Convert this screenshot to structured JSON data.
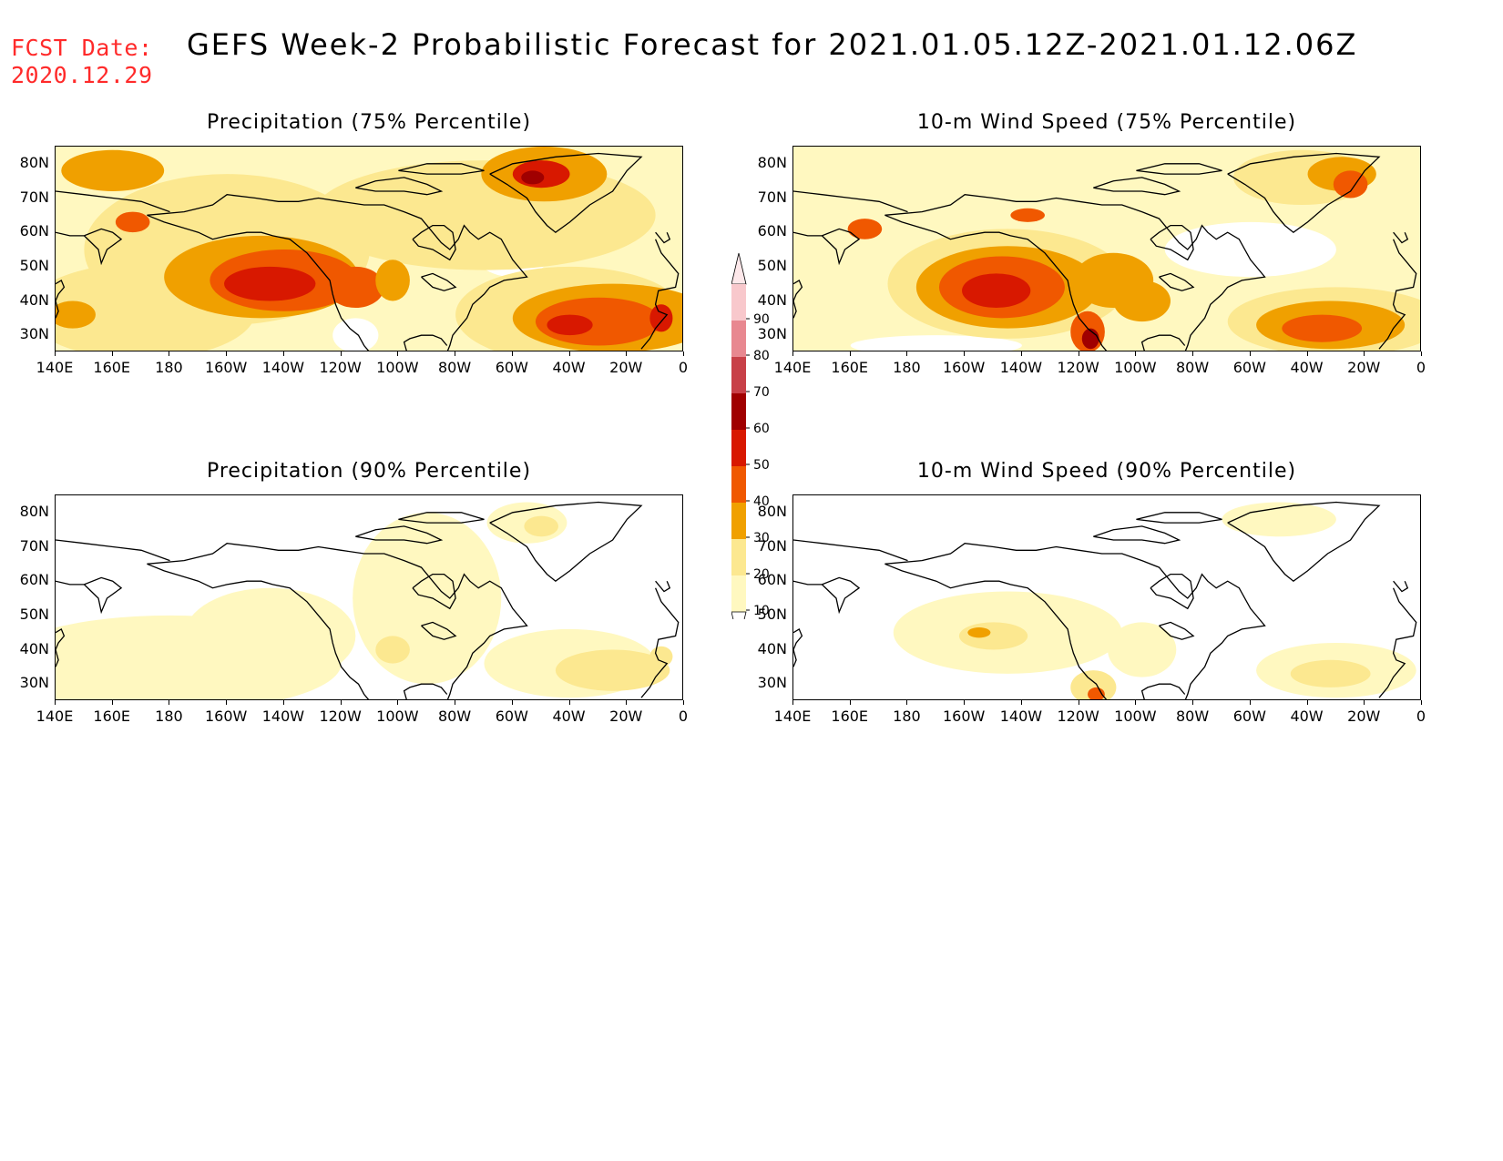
{
  "header": {
    "fcst_label": "FCST Date:",
    "fcst_date": "2020.12.29",
    "title": "GEFS Week-2 Probabilistic Forecast for 2021.01.05.12Z-2021.01.12.06Z"
  },
  "axes": {
    "lat_labels": [
      "80N",
      "70N",
      "60N",
      "50N",
      "40N",
      "30N"
    ],
    "lon_labels": [
      "140E",
      "160E",
      "180",
      "160W",
      "140W",
      "120W",
      "100W",
      "80W",
      "60W",
      "40W",
      "20W",
      "0"
    ]
  },
  "panels": [
    {
      "id": "precip-75",
      "title": "Precipitation (75% Percentile)"
    },
    {
      "id": "wind-75",
      "title": "10-m Wind Speed (75% Percentile)"
    },
    {
      "id": "precip-90",
      "title": "Precipitation (90% Percentile)"
    },
    {
      "id": "wind-90",
      "title": "10-m Wind Speed (90% Percentile)"
    }
  ],
  "colorbar": {
    "levels": [
      "90",
      "80",
      "70",
      "60",
      "50",
      "40",
      "30",
      "20",
      "10"
    ],
    "colors": [
      "#f8c8cc",
      "#e88890",
      "#c84048",
      "#a00000",
      "#d81800",
      "#f05800",
      "#f0a000",
      "#fce890",
      "#fff8c0"
    ]
  }
}
